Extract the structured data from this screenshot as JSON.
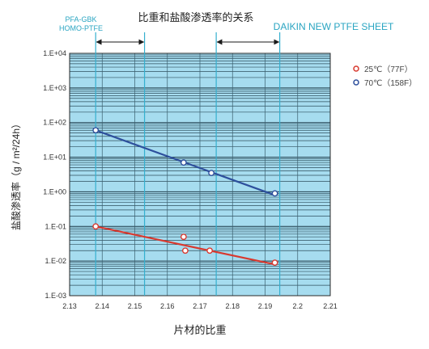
{
  "chart_data": {
    "type": "scatter",
    "title": "比重和盐酸渗透率的关系",
    "xlabel": "片材的比重",
    "ylabel": "盐酸渗透率（g / m²/24h）",
    "xlim": [
      2.13,
      2.21
    ],
    "xticks": [
      "2.13",
      "2.14",
      "2.15",
      "2.16",
      "2.17",
      "2.18",
      "2.19",
      "2.2",
      "2.21"
    ],
    "ylim": [
      0.001,
      10000
    ],
    "yscale": "log",
    "yticks": [
      "1.E-03",
      "1.E-02",
      "1.E-01",
      "1.E+00",
      "1.E+01",
      "1.E+02",
      "1.E+03",
      "1.E+04"
    ],
    "grid": true,
    "legend_position": "top-right",
    "region_labels": {
      "left": [
        "PFA-GBK",
        "HOMO-PTFE"
      ],
      "right": "DAIKIN NEW PTFE SHEET"
    },
    "regions": [
      {
        "x_from": 2.138,
        "x_to": 2.153
      },
      {
        "x_from": 2.175,
        "x_to": 2.1945
      }
    ],
    "series": [
      {
        "name": "25℃（77F）",
        "color": "#d8392f",
        "points": [
          {
            "x": 2.138,
            "y": 0.1
          },
          {
            "x": 2.165,
            "y": 0.05
          },
          {
            "x": 2.1655,
            "y": 0.02
          },
          {
            "x": 2.173,
            "y": 0.02
          },
          {
            "x": 2.193,
            "y": 0.009
          }
        ],
        "trend": [
          {
            "x": 2.138,
            "y": 0.1
          },
          {
            "x": 2.193,
            "y": 0.008
          }
        ]
      },
      {
        "name": "70℃（158F）",
        "color": "#2d4f9c",
        "points": [
          {
            "x": 2.138,
            "y": 60
          },
          {
            "x": 2.165,
            "y": 7
          },
          {
            "x": 2.1735,
            "y": 3.5
          },
          {
            "x": 2.193,
            "y": 0.9
          }
        ],
        "trend": [
          {
            "x": 2.138,
            "y": 60
          },
          {
            "x": 2.193,
            "y": 0.8
          }
        ]
      }
    ]
  }
}
